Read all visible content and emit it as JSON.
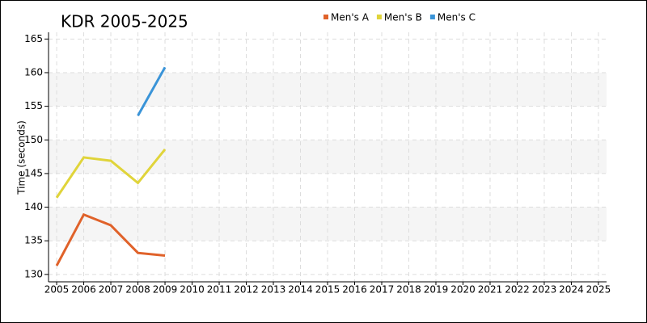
{
  "chart_data": {
    "type": "line",
    "title": "KDR 2005-2025",
    "y_label": "Time (seconds)",
    "x": [
      2005,
      2006,
      2007,
      2008,
      2009
    ],
    "series": [
      {
        "name": "Men's A",
        "color": "#e0622a",
        "values": [
          131.3,
          138.9,
          137.3,
          133.2,
          132.8
        ]
      },
      {
        "name": "Men's B",
        "color": "#e0d43a",
        "values": [
          141.4,
          147.4,
          146.9,
          143.6,
          148.6
        ]
      },
      {
        "name": "Men's C",
        "color": "#3a94d8",
        "values": [
          null,
          null,
          null,
          153.6,
          160.8
        ]
      }
    ],
    "xlim": [
      2004.7,
      2025.3
    ],
    "xticks": [
      2005,
      2006,
      2007,
      2008,
      2009,
      2010,
      2011,
      2012,
      2013,
      2014,
      2015,
      2016,
      2017,
      2018,
      2019,
      2020,
      2021,
      2022,
      2023,
      2024,
      2025
    ],
    "ylim": [
      128.9,
      166
    ],
    "yticks": [
      130,
      135,
      140,
      145,
      150,
      155,
      160,
      165
    ],
    "grid": true,
    "legend": "top"
  }
}
